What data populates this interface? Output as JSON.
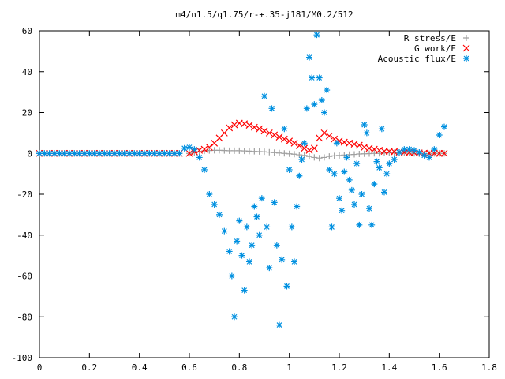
{
  "chart_data": {
    "type": "scatter",
    "title": "m4/n1.5/q1.75/r-+.35-j181/M0.2/512",
    "xlabel": "",
    "ylabel": "",
    "xlim": [
      0,
      1.8
    ],
    "ylim": [
      -100,
      60
    ],
    "xticks": [
      "0",
      "0.2",
      "0.4",
      "0.6",
      "0.8",
      "1",
      "1.2",
      "1.4",
      "1.6",
      "1.8"
    ],
    "yticks": [
      "60",
      "40",
      "20",
      "0",
      "-20",
      "-40",
      "-60",
      "-80",
      "-100"
    ],
    "grid": false,
    "legend_position": "top-right",
    "series": [
      {
        "name": "R stress/E",
        "marker": "plus",
        "color": "#a0a0a0",
        "x": [
          0.6,
          0.62,
          0.64,
          0.66,
          0.68,
          0.7,
          0.72,
          0.74,
          0.76,
          0.78,
          0.8,
          0.82,
          0.84,
          0.86,
          0.88,
          0.9,
          0.92,
          0.94,
          0.96,
          0.98,
          1.0,
          1.02,
          1.04,
          1.06,
          1.08,
          1.1,
          1.12,
          1.14,
          1.16,
          1.18,
          1.2,
          1.22,
          1.24,
          1.26,
          1.28,
          1.3,
          1.32,
          1.34,
          1.36,
          1.38,
          1.4,
          1.42,
          1.44,
          1.46,
          1.48,
          1.5,
          1.52,
          1.54,
          1.56,
          1.58,
          1.6,
          1.62
        ],
        "y": [
          0,
          0.3,
          0.8,
          1.2,
          1.4,
          1.5,
          1.5,
          1.4,
          1.3,
          1.3,
          1.3,
          1.2,
          1.1,
          1.0,
          0.9,
          0.8,
          0.6,
          0.4,
          0.2,
          0,
          -0.2,
          -0.4,
          -0.7,
          -1.0,
          -1.5,
          -2.0,
          -2.3,
          -2.0,
          -1.5,
          -1.2,
          -1.0,
          -0.8,
          -0.6,
          -0.5,
          -0.3,
          -0.2,
          -0.1,
          0,
          0,
          0.2,
          0.3,
          0.3,
          0.3,
          0.2,
          0.1,
          0,
          -0.2,
          -0.3,
          -0.2,
          0,
          0,
          0
        ]
      },
      {
        "name": "G work/E",
        "marker": "cross",
        "color": "#ff0000",
        "x": [
          0.6,
          0.62,
          0.64,
          0.66,
          0.68,
          0.7,
          0.72,
          0.74,
          0.76,
          0.78,
          0.8,
          0.82,
          0.84,
          0.86,
          0.88,
          0.9,
          0.92,
          0.94,
          0.96,
          0.98,
          1.0,
          1.02,
          1.04,
          1.06,
          1.08,
          1.1,
          1.12,
          1.14,
          1.16,
          1.18,
          1.2,
          1.22,
          1.24,
          1.26,
          1.28,
          1.3,
          1.32,
          1.34,
          1.36,
          1.38,
          1.4,
          1.42,
          1.44,
          1.46,
          1.48,
          1.5,
          1.52,
          1.54,
          1.56,
          1.58,
          1.6,
          1.62
        ],
        "y": [
          0,
          0.8,
          1.5,
          2.0,
          3.0,
          5.0,
          7.5,
          10.0,
          12.5,
          14.0,
          14.8,
          14.5,
          13.8,
          12.8,
          12.0,
          11.0,
          10.0,
          9.0,
          8.0,
          7.0,
          6.0,
          5.0,
          3.8,
          2.5,
          1.5,
          2.5,
          7.5,
          10.0,
          8.5,
          7.0,
          6.0,
          5.5,
          5.0,
          4.5,
          4.0,
          3.0,
          2.5,
          2.0,
          1.5,
          1.0,
          1.0,
          0.8,
          0.6,
          0.5,
          0.4,
          0.3,
          0.2,
          0.1,
          0,
          0,
          0,
          0
        ]
      },
      {
        "name": "Acoustic flux/E",
        "marker": "star",
        "color": "#0090e0",
        "x": [
          0.58,
          0.6,
          0.62,
          0.64,
          0.66,
          0.68,
          0.7,
          0.72,
          0.74,
          0.76,
          0.77,
          0.78,
          0.79,
          0.8,
          0.81,
          0.82,
          0.83,
          0.84,
          0.85,
          0.86,
          0.87,
          0.88,
          0.89,
          0.9,
          0.91,
          0.92,
          0.93,
          0.94,
          0.95,
          0.96,
          0.97,
          0.98,
          0.99,
          1.0,
          1.01,
          1.02,
          1.03,
          1.04,
          1.05,
          1.06,
          1.07,
          1.08,
          1.09,
          1.1,
          1.11,
          1.12,
          1.13,
          1.14,
          1.15,
          1.16,
          1.17,
          1.18,
          1.19,
          1.2,
          1.21,
          1.22,
          1.23,
          1.24,
          1.25,
          1.26,
          1.27,
          1.28,
          1.29,
          1.3,
          1.31,
          1.32,
          1.33,
          1.34,
          1.35,
          1.36,
          1.37,
          1.38,
          1.39,
          1.4,
          1.42,
          1.44,
          1.46,
          1.48,
          1.5,
          1.52,
          1.54,
          1.56,
          1.58,
          1.6,
          1.62
        ],
        "y": [
          2.5,
          3.0,
          2.0,
          -2.0,
          -8.0,
          -20.0,
          -25.0,
          -30.0,
          -38.0,
          -48.0,
          -60.0,
          -80.0,
          -43.0,
          -33.0,
          -50.0,
          -67.0,
          -36.0,
          -53.0,
          -45.0,
          -26.0,
          -31.0,
          -40.0,
          -22.0,
          28.0,
          -36.0,
          -56.0,
          22.0,
          -24.0,
          -45.0,
          -84.0,
          -52.0,
          12.0,
          -65.0,
          -8.0,
          -36.0,
          -53.0,
          -26.0,
          -11.0,
          -3.0,
          5.0,
          22.0,
          47.0,
          37.0,
          24.0,
          58.0,
          37.0,
          26.0,
          20.0,
          31.0,
          -8.0,
          -36.0,
          -10.0,
          5.0,
          -22.0,
          -28.0,
          -9.0,
          -2.0,
          -13.0,
          -18.0,
          -25.0,
          -5.0,
          -35.0,
          -20.0,
          14.0,
          10.0,
          -27.0,
          -35.0,
          -15.0,
          -4.0,
          -7.0,
          12.0,
          -19.0,
          -10.0,
          -5.0,
          -3.0,
          0.5,
          2.0,
          2.0,
          1.5,
          0.5,
          -1.0,
          -2.0,
          2.0,
          9.0,
          13.0
        ]
      }
    ]
  }
}
